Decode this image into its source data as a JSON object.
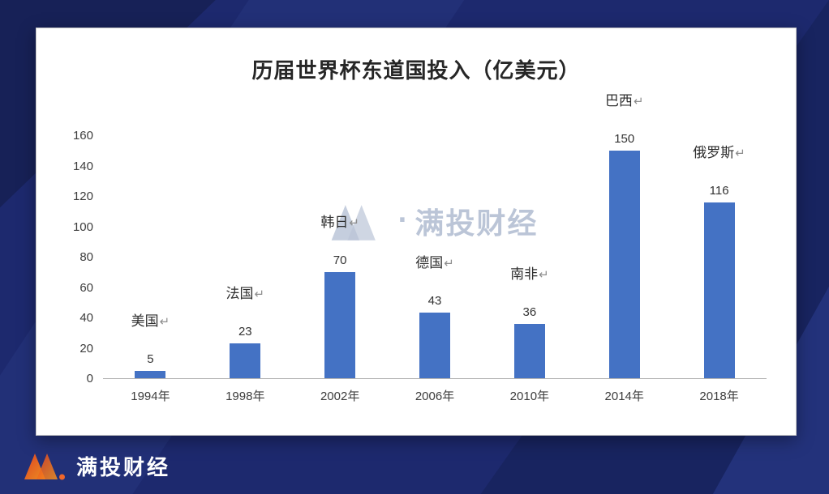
{
  "chart_data": {
    "type": "bar",
    "title": "历届世界杯东道国投入（亿美元）",
    "categories": [
      "1994年",
      "1998年",
      "2002年",
      "2006年",
      "2010年",
      "2014年",
      "2018年"
    ],
    "values": [
      5,
      23,
      70,
      43,
      36,
      150,
      116
    ],
    "country_labels": [
      "美国",
      "法国",
      "韩日",
      "德国",
      "南非",
      "巴西",
      "俄罗斯"
    ],
    "return_mark": "↵",
    "ylim": [
      0,
      160
    ],
    "y_ticks": [
      0,
      20,
      40,
      60,
      80,
      100,
      120,
      140,
      160
    ],
    "xlabel": "",
    "ylabel": "",
    "legend": "none",
    "grid": "off"
  },
  "colors": {
    "bar": "#4472c4",
    "background": "#1d296e",
    "brand_orange": "#f05a23",
    "watermark": "#b4bfd3"
  },
  "watermark": {
    "icon": "brand-m-icon",
    "separator": "·",
    "text": "满投财经"
  },
  "brand": {
    "icon": "brand-m-icon",
    "name": "满投财经"
  }
}
